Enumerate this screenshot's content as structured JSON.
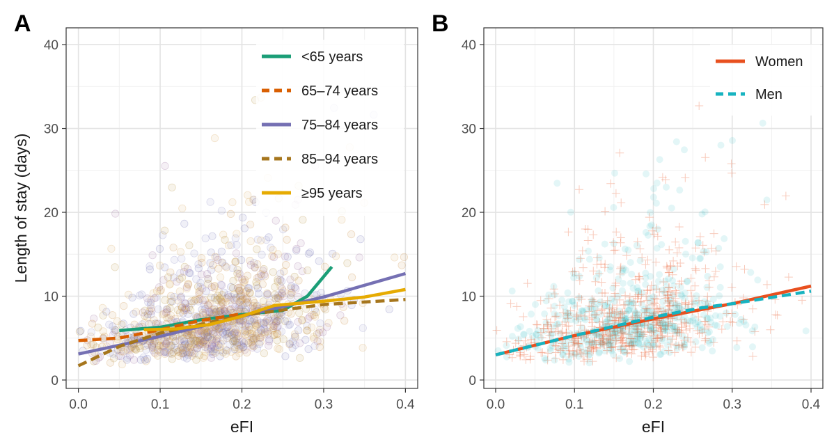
{
  "chart_data": [
    {
      "panel": "A",
      "type": "scatter",
      "xlabel": "eFI",
      "ylabel": "Length of stay (days)",
      "xlim": [
        -0.015,
        0.415
      ],
      "ylim": [
        -1,
        42
      ],
      "xticks": [
        0.0,
        0.1,
        0.2,
        0.3,
        0.4
      ],
      "xtick_labels": [
        "0.0",
        "0.1",
        "0.2",
        "0.3",
        "0.4"
      ],
      "yticks": [
        0,
        10,
        20,
        30,
        40
      ],
      "ytick_labels": [
        "0",
        "10",
        "20",
        "30",
        "40"
      ],
      "grid": true,
      "legend_position": "top-right",
      "point_colors": [
        "#6b6bb5",
        "#c98a3a",
        "#8d8dc7",
        "#d7a55a",
        "#9c6b9e",
        "#b08a2e"
      ],
      "series": [
        {
          "name": "<65 years",
          "color": "#1b9e77",
          "dash": "solid",
          "x": [
            0.05,
            0.1,
            0.15,
            0.2,
            0.25,
            0.28,
            0.31
          ],
          "y": [
            5.9,
            6.3,
            7.2,
            7.8,
            8.3,
            10.0,
            13.5
          ]
        },
        {
          "name": "65–74 years",
          "color": "#d95f02",
          "dash": "dashed",
          "x": [
            0.0,
            0.05,
            0.1,
            0.15,
            0.2
          ],
          "y": [
            4.7,
            5.0,
            6.0,
            7.1,
            7.9
          ]
        },
        {
          "name": "75–84 years",
          "color": "#7570b3",
          "dash": "solid",
          "x": [
            0.0,
            0.1,
            0.2,
            0.3,
            0.4
          ],
          "y": [
            3.1,
            5.2,
            7.6,
            9.9,
            12.7
          ]
        },
        {
          "name": "85–94 years",
          "color": "#a6761d",
          "dash": "dashed",
          "x": [
            0.0,
            0.05,
            0.1,
            0.2,
            0.3,
            0.4
          ],
          "y": [
            1.7,
            4.0,
            5.6,
            7.7,
            9.0,
            9.6
          ]
        },
        {
          "name": "≥95 years",
          "color": "#e6ab02",
          "dash": "solid",
          "x": [
            0.08,
            0.12,
            0.16,
            0.2,
            0.24,
            0.3,
            0.35,
            0.4
          ],
          "y": [
            6.0,
            6.1,
            6.6,
            7.6,
            8.9,
            9.4,
            9.9,
            10.8
          ]
        }
      ]
    },
    {
      "panel": "B",
      "type": "scatter",
      "xlabel": "eFI",
      "ylabel": "",
      "xlim": [
        -0.015,
        0.415
      ],
      "ylim": [
        -1,
        42
      ],
      "xticks": [
        0.0,
        0.1,
        0.2,
        0.3,
        0.4
      ],
      "xtick_labels": [
        "0.0",
        "0.1",
        "0.2",
        "0.3",
        "0.4"
      ],
      "yticks": [
        0,
        10,
        20,
        30,
        40
      ],
      "ytick_labels": [
        "0",
        "10",
        "20",
        "30",
        "40"
      ],
      "grid": true,
      "legend_position": "top-right",
      "series": [
        {
          "name": "Women",
          "color": "#e8501f",
          "dash": "solid",
          "marker": "cross",
          "x": [
            0.0,
            0.1,
            0.2,
            0.3,
            0.4
          ],
          "y": [
            3.0,
            5.3,
            7.3,
            9.1,
            11.2
          ]
        },
        {
          "name": "Men",
          "color": "#17b3c0",
          "dash": "dashed",
          "marker": "circle",
          "x": [
            0.0,
            0.1,
            0.2,
            0.26,
            0.3,
            0.4
          ],
          "y": [
            3.0,
            5.3,
            7.5,
            8.6,
            9.1,
            10.6
          ]
        }
      ]
    }
  ]
}
